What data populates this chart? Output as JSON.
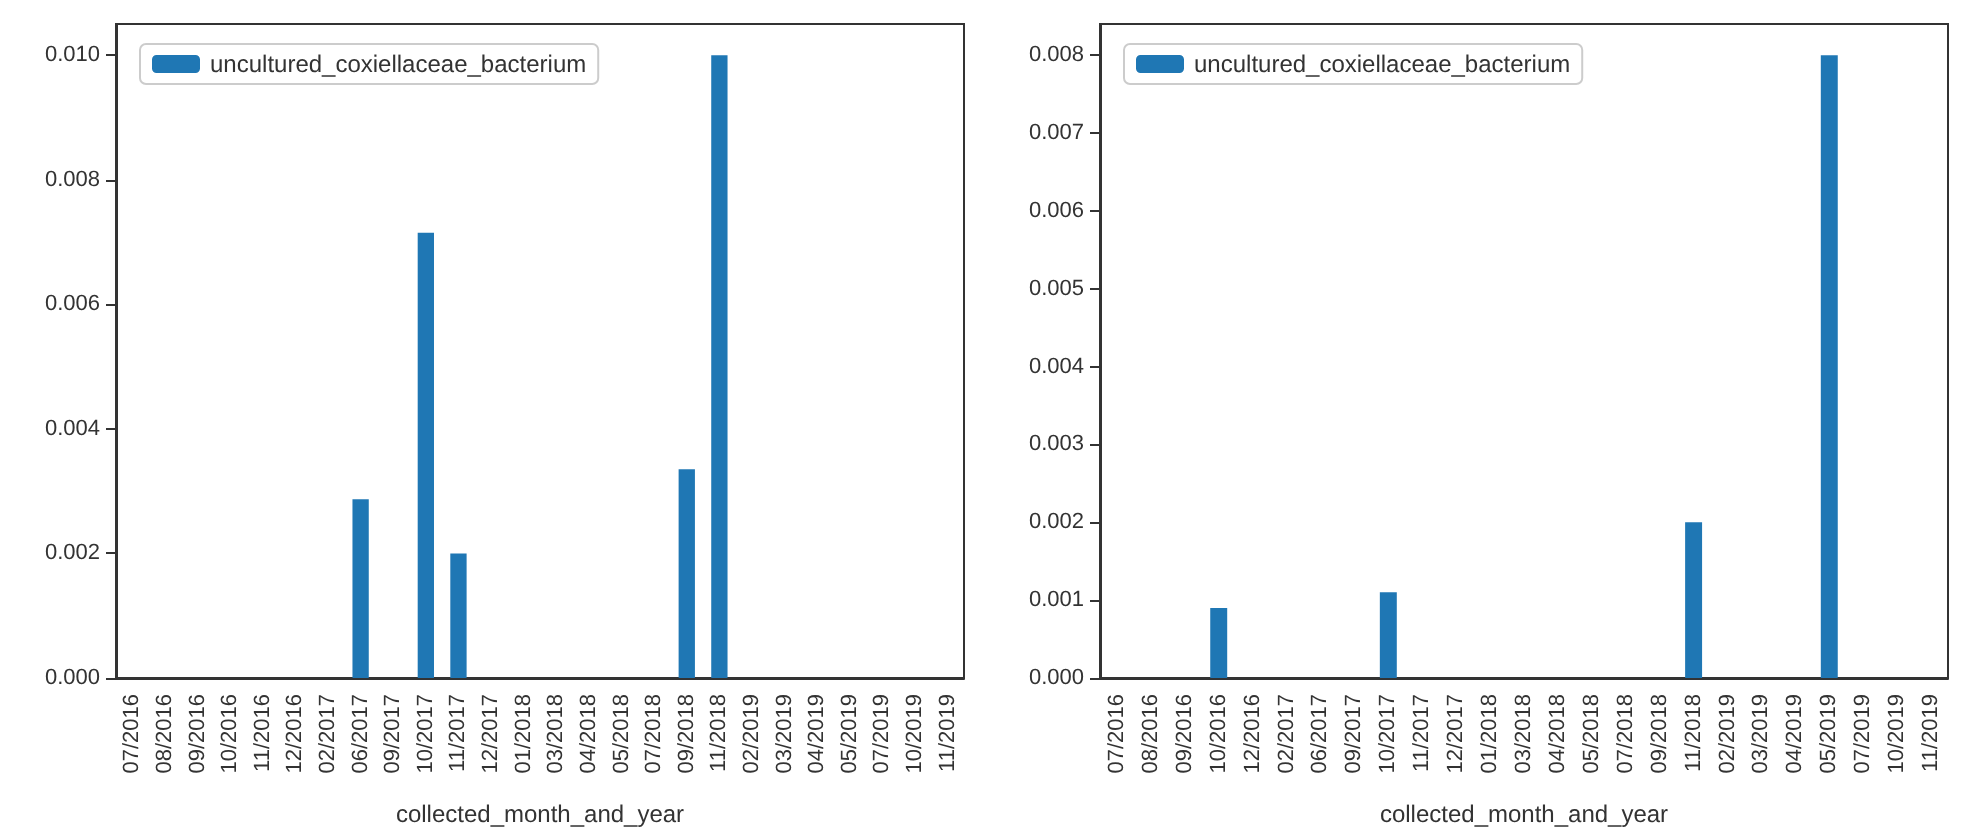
{
  "chart_data": [
    {
      "type": "bar",
      "xlabel": "collected_month_and_year",
      "legend": "top left",
      "grid": false,
      "categories": [
        "07/2016",
        "08/2016",
        "09/2016",
        "10/2016",
        "11/2016",
        "12/2016",
        "02/2017",
        "06/2017",
        "09/2017",
        "10/2017",
        "11/2017",
        "12/2017",
        "01/2018",
        "03/2018",
        "04/2018",
        "05/2018",
        "07/2018",
        "09/2018",
        "11/2018",
        "02/2019",
        "03/2019",
        "04/2019",
        "05/2019",
        "07/2019",
        "10/2019",
        "11/2019"
      ],
      "series": [
        {
          "name": "uncultured_coxiellaceae_bacterium",
          "color": "#1f77b4",
          "values": [
            0,
            0,
            0,
            0,
            0,
            0,
            0,
            0.00287,
            0,
            0.00715,
            0.002,
            0,
            0,
            0,
            0,
            0,
            0,
            0.00335,
            0.01,
            0,
            0,
            0,
            0,
            0,
            0,
            0
          ]
        }
      ],
      "ylim": [
        0,
        0.0105
      ],
      "yticks": [
        {
          "value": 0,
          "label": "0.000"
        },
        {
          "value": 0.002,
          "label": "0.002"
        },
        {
          "value": 0.004,
          "label": "0.004"
        },
        {
          "value": 0.006,
          "label": "0.006"
        },
        {
          "value": 0.008,
          "label": "0.008"
        },
        {
          "value": 0.01,
          "label": "0.010"
        }
      ]
    },
    {
      "type": "bar",
      "xlabel": "collected_month_and_year",
      "legend": "top left",
      "grid": false,
      "categories": [
        "07/2016",
        "08/2016",
        "09/2016",
        "10/2016",
        "12/2016",
        "02/2017",
        "06/2017",
        "09/2017",
        "10/2017",
        "11/2017",
        "12/2017",
        "01/2018",
        "03/2018",
        "04/2018",
        "05/2018",
        "07/2018",
        "09/2018",
        "11/2018",
        "02/2019",
        "03/2019",
        "04/2019",
        "05/2019",
        "07/2019",
        "10/2019",
        "11/2019"
      ],
      "series": [
        {
          "name": "uncultured_coxiellaceae_bacterium",
          "color": "#1f77b4",
          "values": [
            0,
            0,
            0,
            0.0009,
            0,
            0,
            0,
            0,
            0.0011,
            0,
            0,
            0,
            0,
            0,
            0,
            0,
            0,
            0.002,
            0,
            0,
            0,
            0.008,
            0,
            0,
            0
          ]
        }
      ],
      "ylim": [
        0,
        0.0084
      ],
      "yticks": [
        {
          "value": 0,
          "label": "0.000"
        },
        {
          "value": 0.001,
          "label": "0.001"
        },
        {
          "value": 0.002,
          "label": "0.002"
        },
        {
          "value": 0.003,
          "label": "0.003"
        },
        {
          "value": 0.004,
          "label": "0.004"
        },
        {
          "value": 0.005,
          "label": "0.005"
        },
        {
          "value": 0.006,
          "label": "0.006"
        },
        {
          "value": 0.007,
          "label": "0.007"
        },
        {
          "value": 0.008,
          "label": "0.008"
        }
      ]
    }
  ]
}
